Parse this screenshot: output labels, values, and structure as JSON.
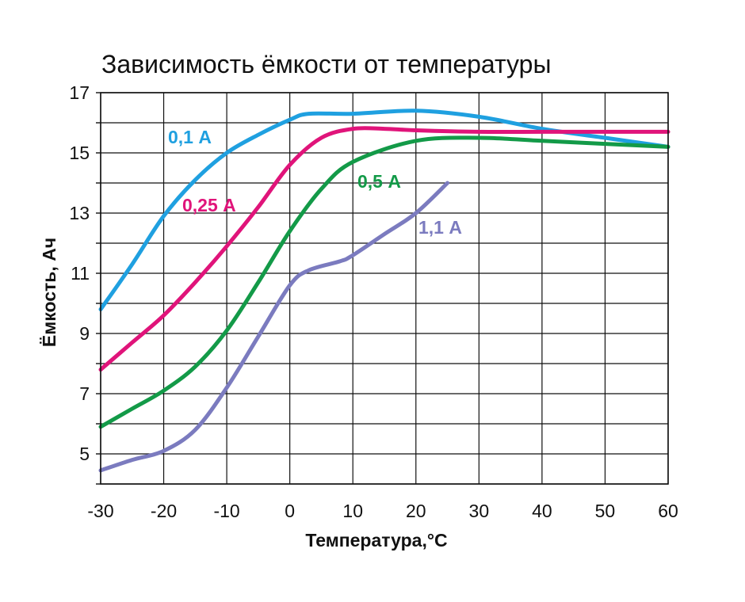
{
  "chart_data": {
    "type": "line",
    "title": "Зависимость ёмкости от температуры",
    "xlabel": "Температура,°С",
    "ylabel": "Ёмкость,  Ач",
    "xlim": [
      -30,
      60
    ],
    "ylim": [
      4,
      17
    ],
    "x_ticks": [
      "-30",
      "-20",
      "-10",
      "0",
      "10",
      "20",
      "30",
      "40",
      "50",
      "60"
    ],
    "y_ticks": [
      "5",
      "7",
      "9",
      "11",
      "13",
      "15",
      "17"
    ],
    "grid": true,
    "series": [
      {
        "name": "0,1 А",
        "color": "#1fa0e0",
        "points": [
          [
            -30,
            9.8
          ],
          [
            -25,
            11.3
          ],
          [
            -20,
            12.9
          ],
          [
            -15,
            14.1
          ],
          [
            -10,
            15.0
          ],
          [
            -5,
            15.6
          ],
          [
            0,
            16.1
          ],
          [
            3,
            16.3
          ],
          [
            10,
            16.3
          ],
          [
            20,
            16.4
          ],
          [
            30,
            16.2
          ],
          [
            40,
            15.8
          ],
          [
            50,
            15.5
          ],
          [
            60,
            15.2
          ]
        ]
      },
      {
        "name": "0,25 А",
        "color": "#e0147a",
        "points": [
          [
            -30,
            7.8
          ],
          [
            -25,
            8.7
          ],
          [
            -20,
            9.6
          ],
          [
            -15,
            10.7
          ],
          [
            -10,
            11.9
          ],
          [
            -5,
            13.2
          ],
          [
            0,
            14.6
          ],
          [
            5,
            15.5
          ],
          [
            10,
            15.8
          ],
          [
            15,
            15.8
          ],
          [
            20,
            15.75
          ],
          [
            30,
            15.7
          ],
          [
            40,
            15.7
          ],
          [
            50,
            15.7
          ],
          [
            60,
            15.7
          ]
        ]
      },
      {
        "name": "0,5 А",
        "color": "#139a48",
        "points": [
          [
            -30,
            5.9
          ],
          [
            -25,
            6.5
          ],
          [
            -20,
            7.1
          ],
          [
            -15,
            7.9
          ],
          [
            -10,
            9.1
          ],
          [
            -5,
            10.7
          ],
          [
            0,
            12.4
          ],
          [
            5,
            13.8
          ],
          [
            10,
            14.7
          ],
          [
            20,
            15.4
          ],
          [
            30,
            15.5
          ],
          [
            40,
            15.4
          ],
          [
            50,
            15.3
          ],
          [
            60,
            15.2
          ]
        ]
      },
      {
        "name": "1,1 А",
        "color": "#7b7bbf",
        "points": [
          [
            -30,
            4.45
          ],
          [
            -25,
            4.8
          ],
          [
            -20,
            5.1
          ],
          [
            -15,
            5.8
          ],
          [
            -10,
            7.2
          ],
          [
            -5,
            8.9
          ],
          [
            0,
            10.6
          ],
          [
            3,
            11.1
          ],
          [
            8,
            11.4
          ],
          [
            10,
            11.6
          ],
          [
            15,
            12.3
          ],
          [
            20,
            13.0
          ],
          [
            25,
            14.0
          ]
        ]
      }
    ]
  }
}
